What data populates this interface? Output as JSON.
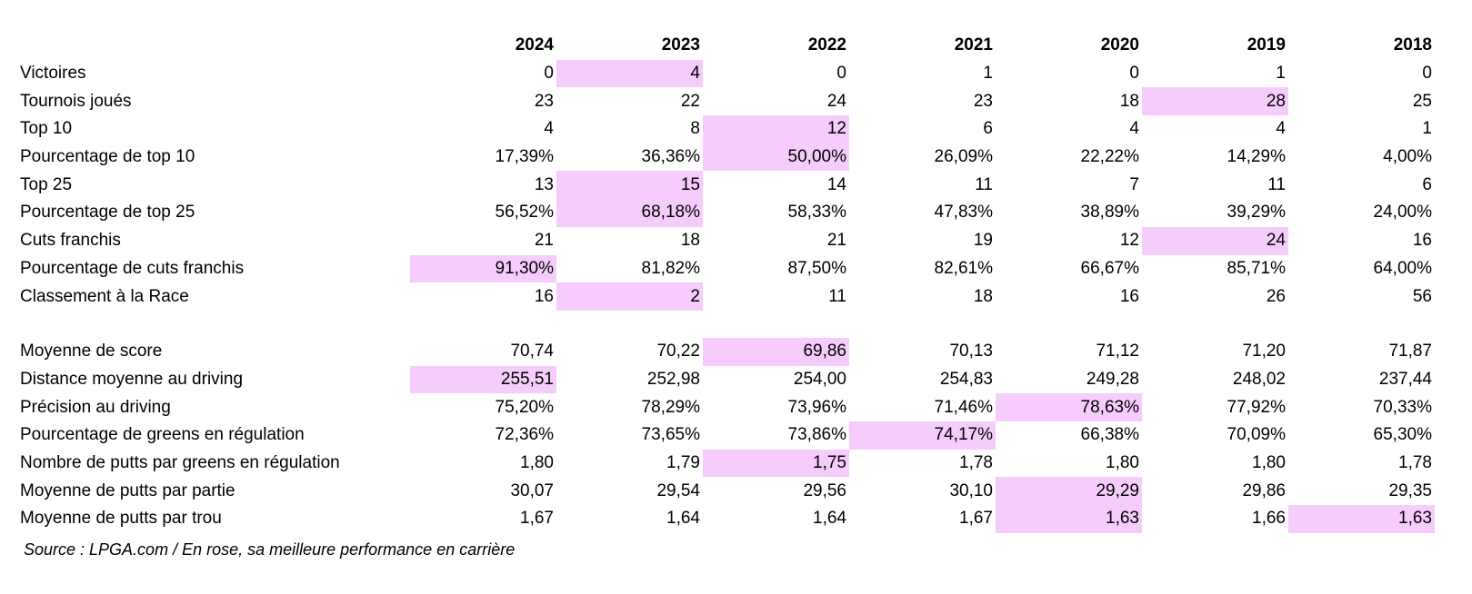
{
  "table": {
    "years": [
      "2024",
      "2023",
      "2022",
      "2021",
      "2020",
      "2019",
      "2018"
    ],
    "highlight_color": "#f5ccfb",
    "groups": [
      [
        {
          "label": "Victoires",
          "values": [
            "0",
            "4",
            "0",
            "1",
            "0",
            "1",
            "0"
          ],
          "highlight": [
            1
          ]
        },
        {
          "label": "Tournois joués",
          "values": [
            "23",
            "22",
            "24",
            "23",
            "18",
            "28",
            "25"
          ],
          "highlight": [
            5
          ]
        },
        {
          "label": "Top 10",
          "values": [
            "4",
            "8",
            "12",
            "6",
            "4",
            "4",
            "1"
          ],
          "highlight": [
            2
          ]
        },
        {
          "label": "Pourcentage de top 10",
          "values": [
            "17,39%",
            "36,36%",
            "50,00%",
            "26,09%",
            "22,22%",
            "14,29%",
            "4,00%"
          ],
          "highlight": [
            2
          ]
        },
        {
          "label": "Top 25",
          "values": [
            "13",
            "15",
            "14",
            "11",
            "7",
            "11",
            "6"
          ],
          "highlight": [
            1
          ]
        },
        {
          "label": "Pourcentage de top 25",
          "values": [
            "56,52%",
            "68,18%",
            "58,33%",
            "47,83%",
            "38,89%",
            "39,29%",
            "24,00%"
          ],
          "highlight": [
            1
          ]
        },
        {
          "label": "Cuts franchis",
          "values": [
            "21",
            "18",
            "21",
            "19",
            "12",
            "24",
            "16"
          ],
          "highlight": [
            5
          ]
        },
        {
          "label": "Pourcentage de cuts franchis",
          "values": [
            "91,30%",
            "81,82%",
            "87,50%",
            "82,61%",
            "66,67%",
            "85,71%",
            "64,00%"
          ],
          "highlight": [
            0
          ]
        },
        {
          "label": "Classement à la Race",
          "values": [
            "16",
            "2",
            "11",
            "18",
            "16",
            "26",
            "56"
          ],
          "highlight": [
            1
          ]
        }
      ],
      [
        {
          "label": "Moyenne de score",
          "values": [
            "70,74",
            "70,22",
            "69,86",
            "70,13",
            "71,12",
            "71,20",
            "71,87"
          ],
          "highlight": [
            2
          ]
        },
        {
          "label": "Distance moyenne au driving",
          "values": [
            "255,51",
            "252,98",
            "254,00",
            "254,83",
            "249,28",
            "248,02",
            "237,44"
          ],
          "highlight": [
            0
          ]
        },
        {
          "label": "Précision au driving",
          "values": [
            "75,20%",
            "78,29%",
            "73,96%",
            "71,46%",
            "78,63%",
            "77,92%",
            "70,33%"
          ],
          "highlight": [
            4
          ]
        },
        {
          "label": "Pourcentage de greens en régulation",
          "values": [
            "72,36%",
            "73,65%",
            "73,86%",
            "74,17%",
            "66,38%",
            "70,09%",
            "65,30%"
          ],
          "highlight": [
            3
          ]
        },
        {
          "label": "Nombre de putts par greens en régulation",
          "values": [
            "1,80",
            "1,79",
            "1,75",
            "1,78",
            "1,80",
            "1,80",
            "1,78"
          ],
          "highlight": [
            2
          ]
        },
        {
          "label": "Moyenne de putts par partie",
          "values": [
            "30,07",
            "29,54",
            "29,56",
            "30,10",
            "29,29",
            "29,86",
            "29,35"
          ],
          "highlight": [
            4
          ]
        },
        {
          "label": "Moyenne de putts par trou",
          "values": [
            "1,67",
            "1,64",
            "1,64",
            "1,67",
            "1,63",
            "1,66",
            "1,63"
          ],
          "highlight": [
            4,
            6
          ]
        }
      ]
    ]
  },
  "source_note": "Source : LPGA.com / En rose, sa meilleure performance en carrière"
}
